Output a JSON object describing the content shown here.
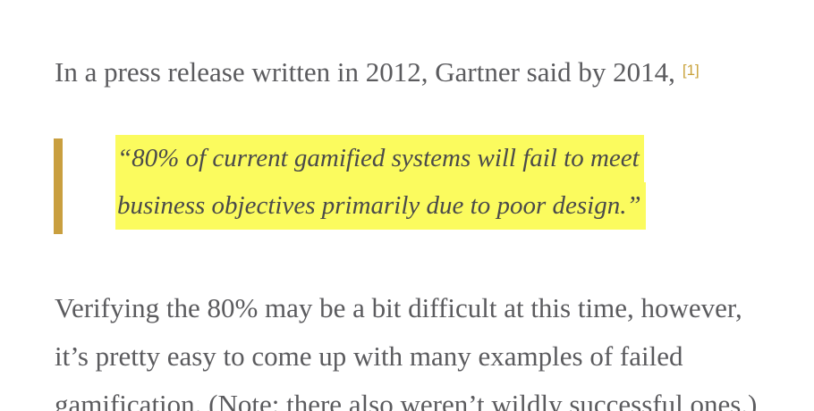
{
  "intro": {
    "text": "In a press release written in 2012, Gartner said by 2014,",
    "reference": "[1]"
  },
  "quote": {
    "line1": "“80% of current gamified systems will fail to meet",
    "line2": "business objectives primarily due to poor design.”",
    "highlight_color": "#fbfb5e",
    "bar_color": "#c99f3f"
  },
  "body_paragraph": {
    "line1": "Verifying the 80% may be a bit difficult at this time, however,",
    "line2": "it’s pretty easy to come up with many examples of failed",
    "line3": "gamification. (Note: there also weren’t wildly successful ones.)"
  }
}
